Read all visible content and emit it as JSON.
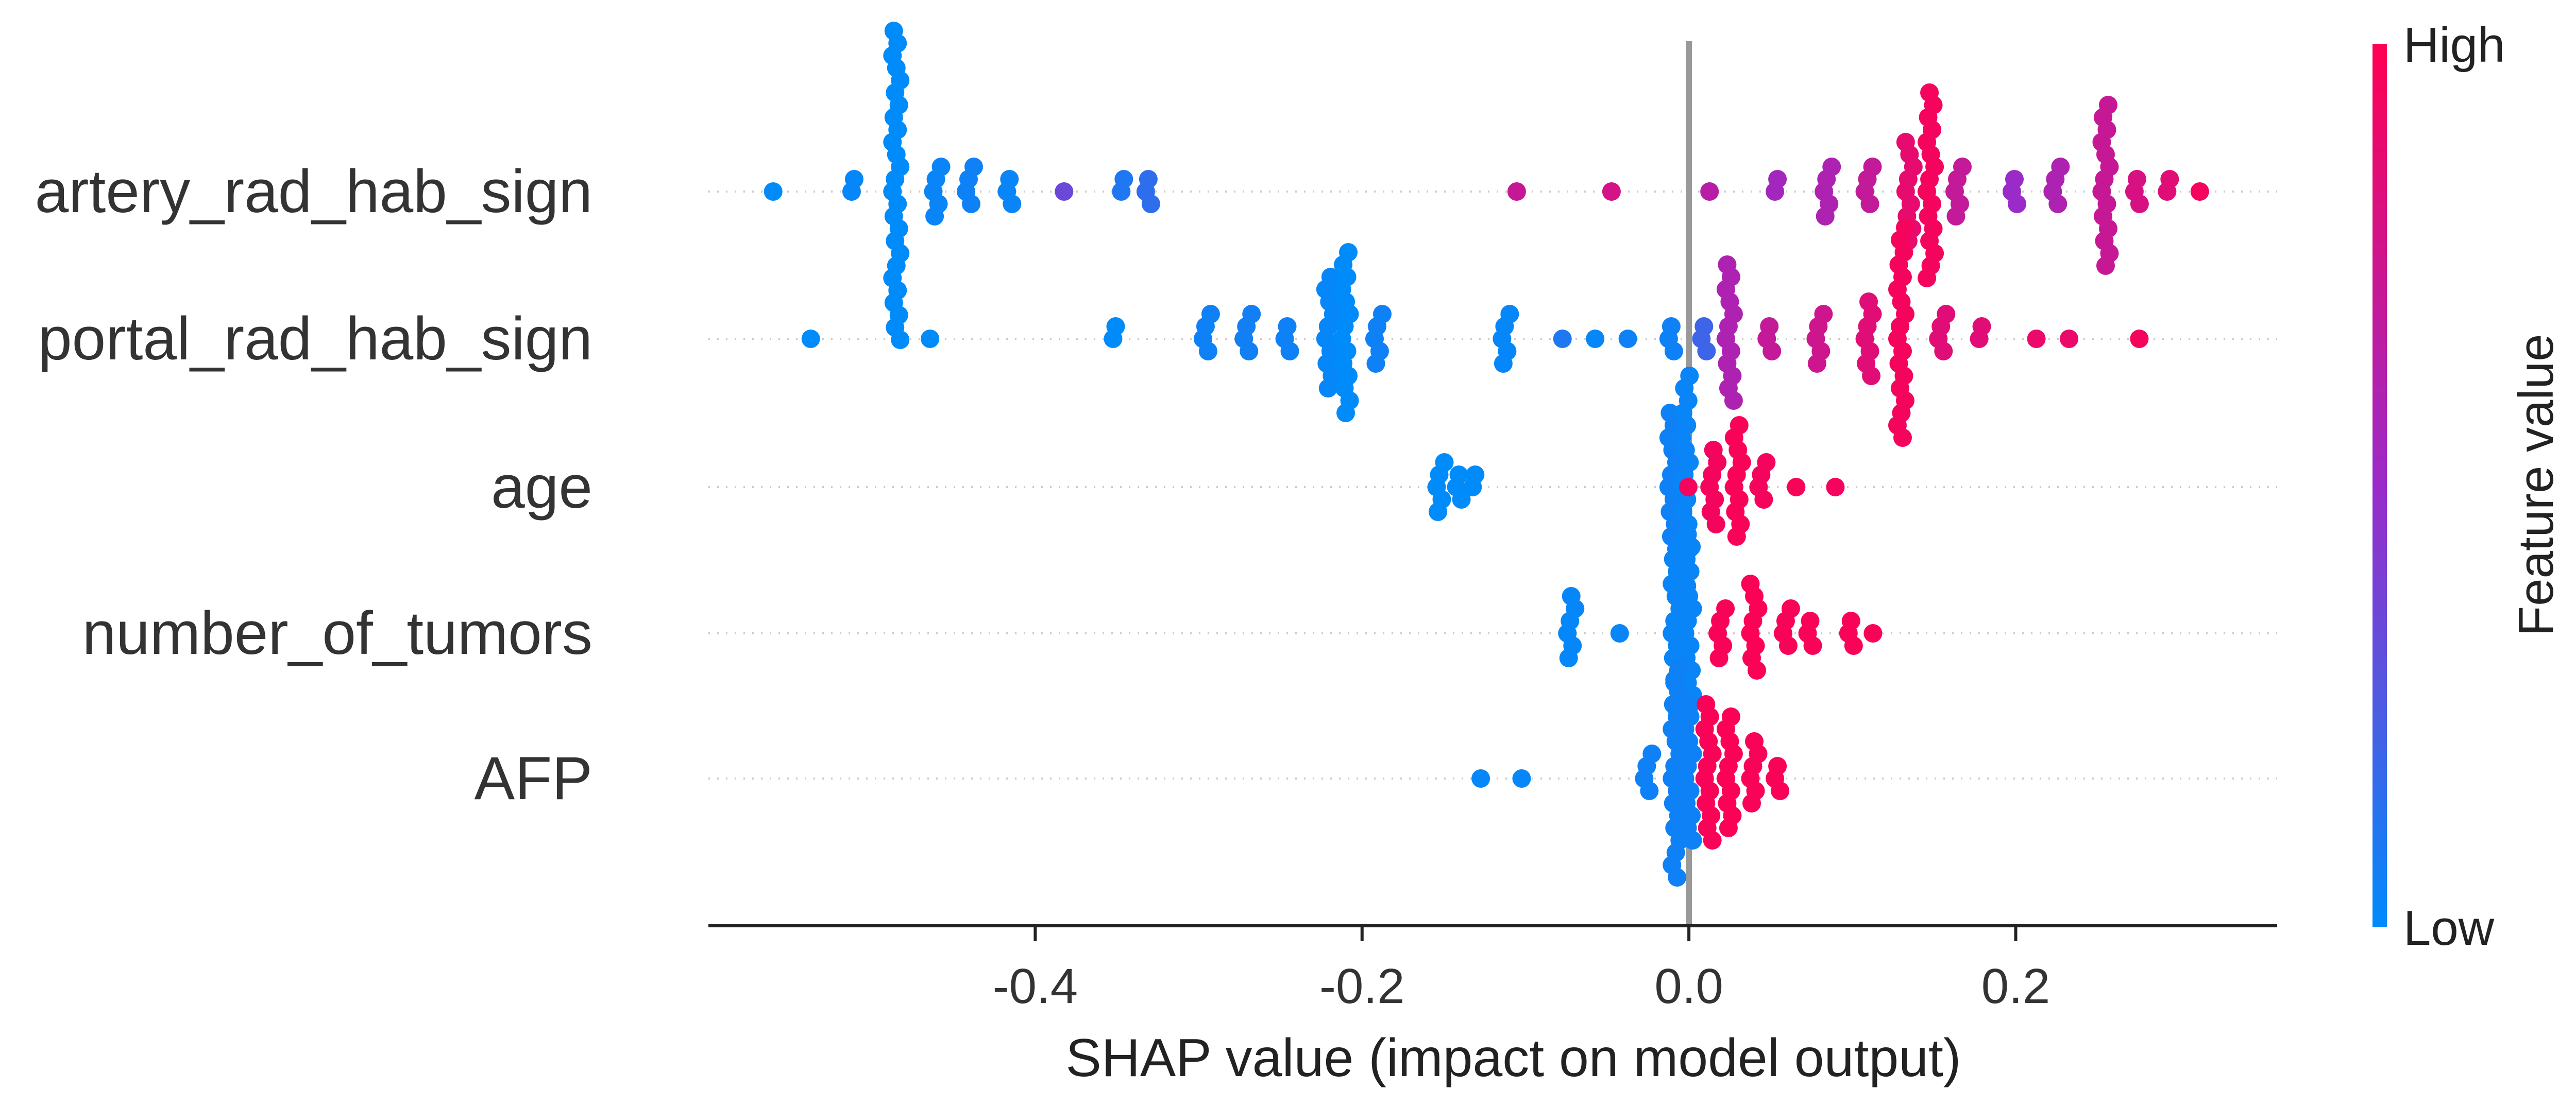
{
  "chart_data": {
    "type": "scatter",
    "subtype": "shap-beeswarm",
    "xlabel": "SHAP value (impact on model output)",
    "xlim": [
      -0.6,
      0.36
    ],
    "xticks": [
      -0.4,
      -0.2,
      0.0,
      0.2
    ],
    "xtick_labels": [
      "-0.4",
      "-0.2",
      "0.0",
      "0.2"
    ],
    "colorbar": {
      "title": "Feature value",
      "high_label": "High",
      "low_label": "Low",
      "low_color": "#008bfb",
      "high_color": "#ff0052",
      "mid_color": "#9a2bc9"
    },
    "features": [
      {
        "name": "artery_rad_hab_sign",
        "points": [
          {
            "v": -0.558,
            "f": 0.0,
            "n": 1
          },
          {
            "v": -0.51,
            "f": 0.02,
            "n": 2
          },
          {
            "v": -0.485,
            "f": 0.0,
            "n": 26
          },
          {
            "v": -0.46,
            "f": 0.03,
            "n": 5
          },
          {
            "v": -0.44,
            "f": 0.05,
            "n": 4
          },
          {
            "v": -0.415,
            "f": 0.03,
            "n": 3
          },
          {
            "v": -0.38,
            "f": 0.35,
            "n": 1
          },
          {
            "v": -0.345,
            "f": 0.1,
            "n": 2
          },
          {
            "v": -0.33,
            "f": 0.15,
            "n": 3
          },
          {
            "v": -0.103,
            "f": 0.72,
            "n": 1
          },
          {
            "v": -0.045,
            "f": 0.78,
            "n": 1
          },
          {
            "v": 0.015,
            "f": 0.65,
            "n": 1
          },
          {
            "v": 0.055,
            "f": 0.55,
            "n": 2
          },
          {
            "v": 0.085,
            "f": 0.6,
            "n": 5
          },
          {
            "v": 0.11,
            "f": 0.7,
            "n": 4
          },
          {
            "v": 0.135,
            "f": 0.88,
            "n": 9
          },
          {
            "v": 0.148,
            "f": 0.95,
            "n": 16
          },
          {
            "v": 0.165,
            "f": 0.7,
            "n": 5
          },
          {
            "v": 0.2,
            "f": 0.5,
            "n": 3
          },
          {
            "v": 0.225,
            "f": 0.6,
            "n": 4
          },
          {
            "v": 0.255,
            "f": 0.72,
            "n": 14
          },
          {
            "v": 0.275,
            "f": 0.8,
            "n": 3
          },
          {
            "v": 0.295,
            "f": 0.85,
            "n": 2
          },
          {
            "v": 0.315,
            "f": 0.95,
            "n": 1
          }
        ]
      },
      {
        "name": "portal_rad_hab_sign",
        "points": [
          {
            "v": -0.535,
            "f": 0.0,
            "n": 1
          },
          {
            "v": -0.462,
            "f": 0.0,
            "n": 1
          },
          {
            "v": -0.35,
            "f": 0.0,
            "n": 2
          },
          {
            "v": -0.295,
            "f": 0.05,
            "n": 4
          },
          {
            "v": -0.27,
            "f": 0.06,
            "n": 4
          },
          {
            "v": -0.245,
            "f": 0.05,
            "n": 3
          },
          {
            "v": -0.22,
            "f": 0.02,
            "n": 10
          },
          {
            "v": -0.21,
            "f": 0.0,
            "n": 14
          },
          {
            "v": -0.19,
            "f": 0.05,
            "n": 5
          },
          {
            "v": -0.112,
            "f": 0.02,
            "n": 5
          },
          {
            "v": -0.075,
            "f": 0.1,
            "n": 1
          },
          {
            "v": -0.055,
            "f": 0.02,
            "n": 1
          },
          {
            "v": -0.035,
            "f": 0.05,
            "n": 1
          },
          {
            "v": -0.01,
            "f": 0.05,
            "n": 3
          },
          {
            "v": 0.01,
            "f": 0.2,
            "n": 3
          },
          {
            "v": 0.025,
            "f": 0.6,
            "n": 12
          },
          {
            "v": 0.05,
            "f": 0.7,
            "n": 3
          },
          {
            "v": 0.08,
            "f": 0.75,
            "n": 5
          },
          {
            "v": 0.11,
            "f": 0.85,
            "n": 7
          },
          {
            "v": 0.13,
            "f": 0.95,
            "n": 18
          },
          {
            "v": 0.155,
            "f": 0.85,
            "n": 4
          },
          {
            "v": 0.18,
            "f": 0.85,
            "n": 2
          },
          {
            "v": 0.215,
            "f": 0.9,
            "n": 1
          },
          {
            "v": 0.235,
            "f": 0.9,
            "n": 1
          },
          {
            "v": 0.278,
            "f": 0.95,
            "n": 1
          }
        ]
      },
      {
        "name": "age",
        "points": [
          {
            "v": -0.152,
            "f": 0.0,
            "n": 5
          },
          {
            "v": -0.14,
            "f": 0.0,
            "n": 3
          },
          {
            "v": -0.13,
            "f": 0.0,
            "n": 2
          },
          {
            "v": -0.01,
            "f": 0.05,
            "n": 12
          },
          {
            "v": -0.002,
            "f": 0.03,
            "n": 18
          },
          {
            "v": 0.002,
            "f": 0.95,
            "n": 1
          },
          {
            "v": 0.015,
            "f": 0.95,
            "n": 7
          },
          {
            "v": 0.03,
            "f": 0.97,
            "n": 10
          },
          {
            "v": 0.045,
            "f": 0.95,
            "n": 4
          },
          {
            "v": 0.068,
            "f": 0.97,
            "n": 1
          },
          {
            "v": 0.092,
            "f": 0.95,
            "n": 1
          }
        ]
      },
      {
        "name": "number_of_tumors",
        "points": [
          {
            "v": -0.072,
            "f": 0.02,
            "n": 6
          },
          {
            "v": -0.04,
            "f": 0.03,
            "n": 1
          },
          {
            "v": -0.008,
            "f": 0.03,
            "n": 14
          },
          {
            "v": 0.0,
            "f": 0.03,
            "n": 16
          },
          {
            "v": 0.02,
            "f": 0.97,
            "n": 5
          },
          {
            "v": 0.04,
            "f": 0.98,
            "n": 8
          },
          {
            "v": 0.06,
            "f": 0.97,
            "n": 4
          },
          {
            "v": 0.075,
            "f": 0.97,
            "n": 3
          },
          {
            "v": 0.1,
            "f": 0.97,
            "n": 3
          },
          {
            "v": 0.115,
            "f": 0.97,
            "n": 1
          }
        ]
      },
      {
        "name": "AFP",
        "points": [
          {
            "v": -0.125,
            "f": 0.02,
            "n": 1
          },
          {
            "v": -0.1,
            "f": 0.02,
            "n": 1
          },
          {
            "v": -0.025,
            "f": 0.05,
            "n": 4
          },
          {
            "v": -0.008,
            "f": 0.05,
            "n": 18
          },
          {
            "v": 0.0,
            "f": 0.05,
            "n": 12
          },
          {
            "v": 0.012,
            "f": 0.97,
            "n": 12
          },
          {
            "v": 0.025,
            "f": 0.98,
            "n": 10
          },
          {
            "v": 0.04,
            "f": 0.97,
            "n": 6
          },
          {
            "v": 0.055,
            "f": 0.97,
            "n": 3
          }
        ]
      }
    ]
  }
}
